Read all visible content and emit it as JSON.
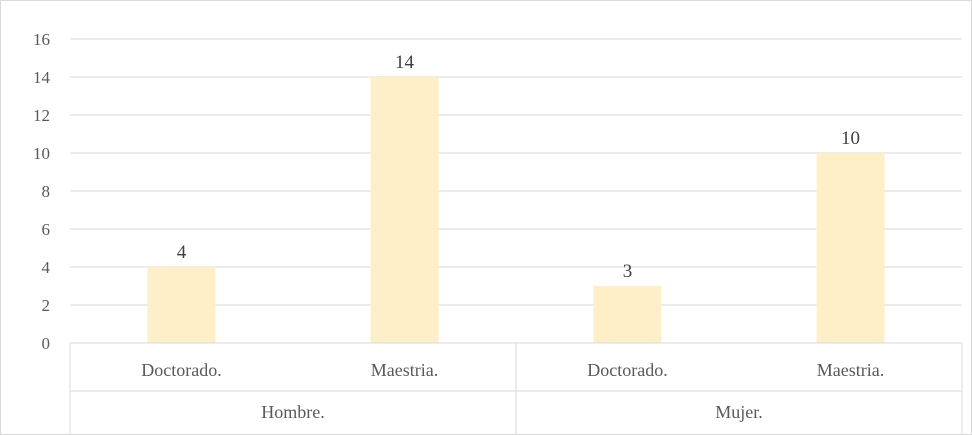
{
  "chart_data": {
    "type": "bar",
    "title": "",
    "xlabel": "",
    "ylabel": "",
    "ylim": [
      0,
      16
    ],
    "yticks": [
      0,
      2,
      4,
      6,
      8,
      10,
      12,
      14,
      16
    ],
    "grid": true,
    "legend": "none",
    "groups": [
      {
        "label": "Hombre.",
        "categories": [
          "Doctorado.",
          "Maestria."
        ],
        "values": [
          4,
          14
        ]
      },
      {
        "label": "Mujer.",
        "categories": [
          "Doctorado.",
          "Maestria."
        ],
        "values": [
          3,
          10
        ]
      }
    ],
    "bar_color": "#FFEFC9",
    "gridline_color": "#D9D9D9",
    "text_color": "#595959"
  }
}
